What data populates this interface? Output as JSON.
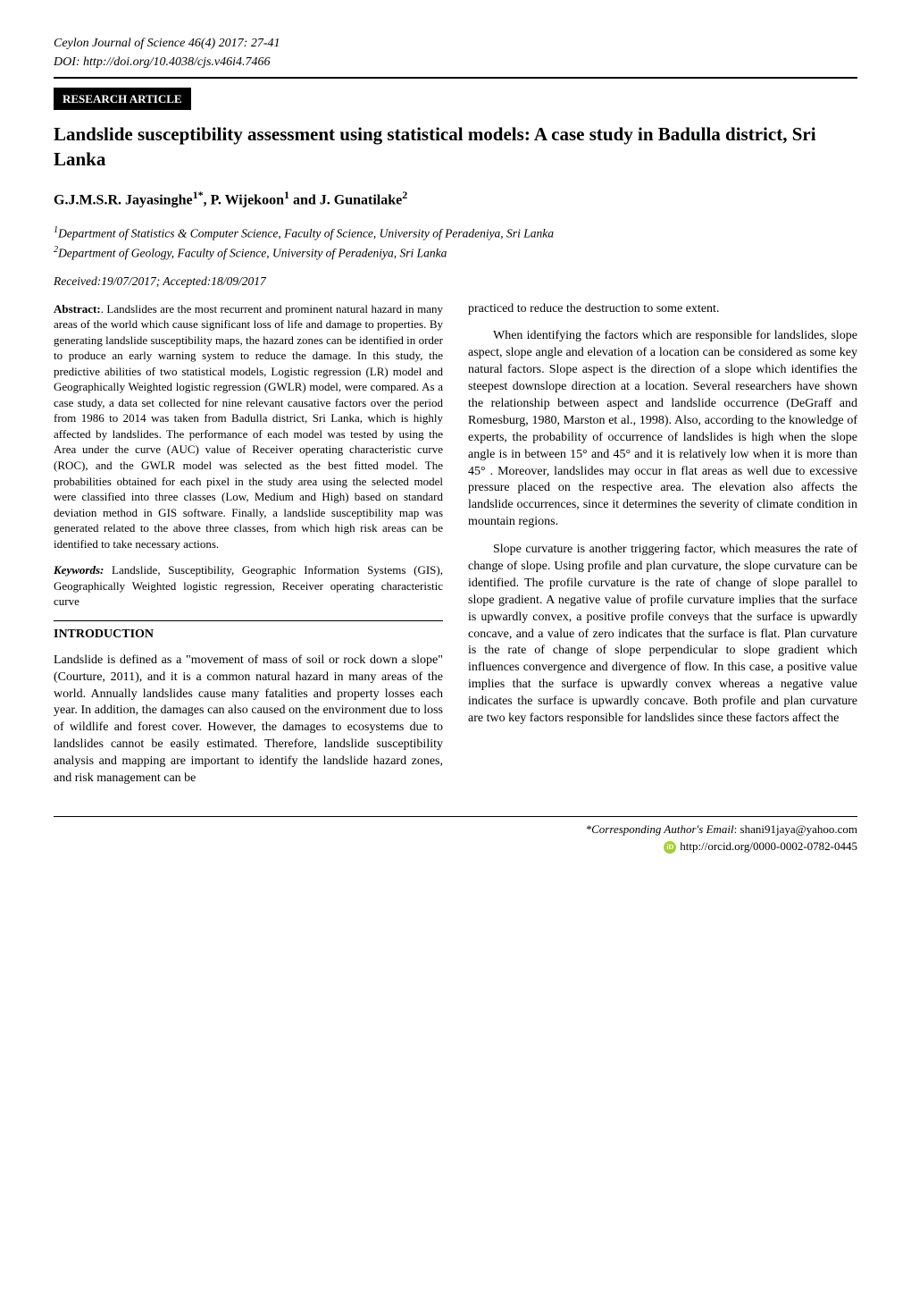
{
  "header": {
    "journal_line": "Ceylon Journal of Science 46(4) 2017: 27-41",
    "doi_line": "DOI: http://doi.org/10.4038/cjs.v46i4.7466",
    "badge": "RESEARCH ARTICLE"
  },
  "title": "Landslide susceptibility assessment using statistical models: A case study in Badulla district, Sri Lanka",
  "authors_html": "G.J.M.S.R. Jayasinghe<sup>1*</sup>, P. Wijekoon<sup>1</sup> and J. Gunatilake<sup>2</sup>",
  "affiliations": {
    "a1": "Department of Statistics & Computer Science, Faculty of Science, University of Peradeniya, Sri Lanka",
    "a2": "Department of Geology, Faculty of Science, University of Peradeniya, Sri Lanka"
  },
  "dates": "Received:19/07/2017; Accepted:18/09/2017",
  "abstract": {
    "label": "Abstract:",
    "text": ". Landslides are the most recurrent and prominent natural hazard in many areas of the world which cause significant loss of life and damage to properties. By generating landslide susceptibility maps, the hazard zones can be identified in order to produce an early warning system to reduce the damage. In this study, the predictive abilities of two statistical models, Logistic regression (LR) model and Geographically Weighted logistic regression (GWLR) model, were compared. As a case study, a data set collected for nine relevant causative factors over the period from 1986 to 2014 was taken from Badulla district, Sri Lanka, which is highly affected by landslides. The performance of each model was tested by using the Area under the curve (AUC) value of Receiver operating characteristic curve (ROC), and the GWLR model was selected as the best fitted model. The probabilities obtained for each pixel in the study area using the selected model were classified into three classes (Low, Medium and High) based on standard deviation method in GIS software. Finally, a landslide susceptibility map was generated related to the above three classes, from which high risk areas can be identified to take necessary actions."
  },
  "keywords": {
    "label": "Keywords:",
    "text": " Landslide, Susceptibility, Geographic Information Systems (GIS), Geographically Weighted logistic regression, Receiver operating characteristic curve"
  },
  "section": {
    "heading": "INTRODUCTION"
  },
  "left_paragraphs": {
    "p1": "Landslide is defined as a \"movement of mass of soil or rock down a slope\" (Courture, 2011), and it is a common natural hazard in many areas of the world. Annually landslides cause many fatalities and property losses each year. In addition, the damages can also caused on the environment due to loss of wildlife and forest cover. However, the damages to ecosystems due to landslides cannot be easily estimated. Therefore, landslide susceptibility analysis and mapping are important to identify the landslide hazard zones, and risk management can be"
  },
  "right_paragraphs": {
    "p1": "practiced to reduce the destruction to some extent.",
    "p2": "When identifying the factors which are responsible for landslides, slope aspect, slope angle and elevation of a location can be considered as some key natural factors. Slope aspect is the direction of a slope which identifies the steepest downslope direction at a location. Several researchers have shown the relationship between aspect and landslide occurrence (DeGraff and Romesburg, 1980, Marston et al., 1998). Also, according to the knowledge of experts, the probability of occurrence of landslides is high when the slope angle is in between 15° and 45° and it is relatively low when it is more than 45° . Moreover, landslides may occur in flat areas as well due to excessive pressure placed on the respective area. The elevation also affects the landslide occurrences, since it determines the severity of climate condition in mountain regions.",
    "p3": "Slope curvature is another triggering factor, which measures the rate of change of slope. Using profile and plan curvature, the slope curvature can be identified. The profile curvature is the rate of change of slope parallel to slope gradient. A negative value of profile curvature implies that the surface is upwardly convex, a positive profile conveys that the surface is upwardly concave, and a value of zero indicates that the surface is flat. Plan curvature is the rate of change of slope perpendicular to slope gradient which influences convergence and divergence of flow. In this case, a positive value implies that the surface is upwardly convex whereas a negative value indicates the surface is upwardly concave. Both profile and plan curvature are two key factors responsible for landslides since these factors affect the"
  },
  "footer": {
    "corresponding_label": "*Corresponding Author's Email",
    "corresponding_email": ": shani91jaya@yahoo.com",
    "orcid_url": "http://orcid.org/0000-0002-0782-0445"
  }
}
